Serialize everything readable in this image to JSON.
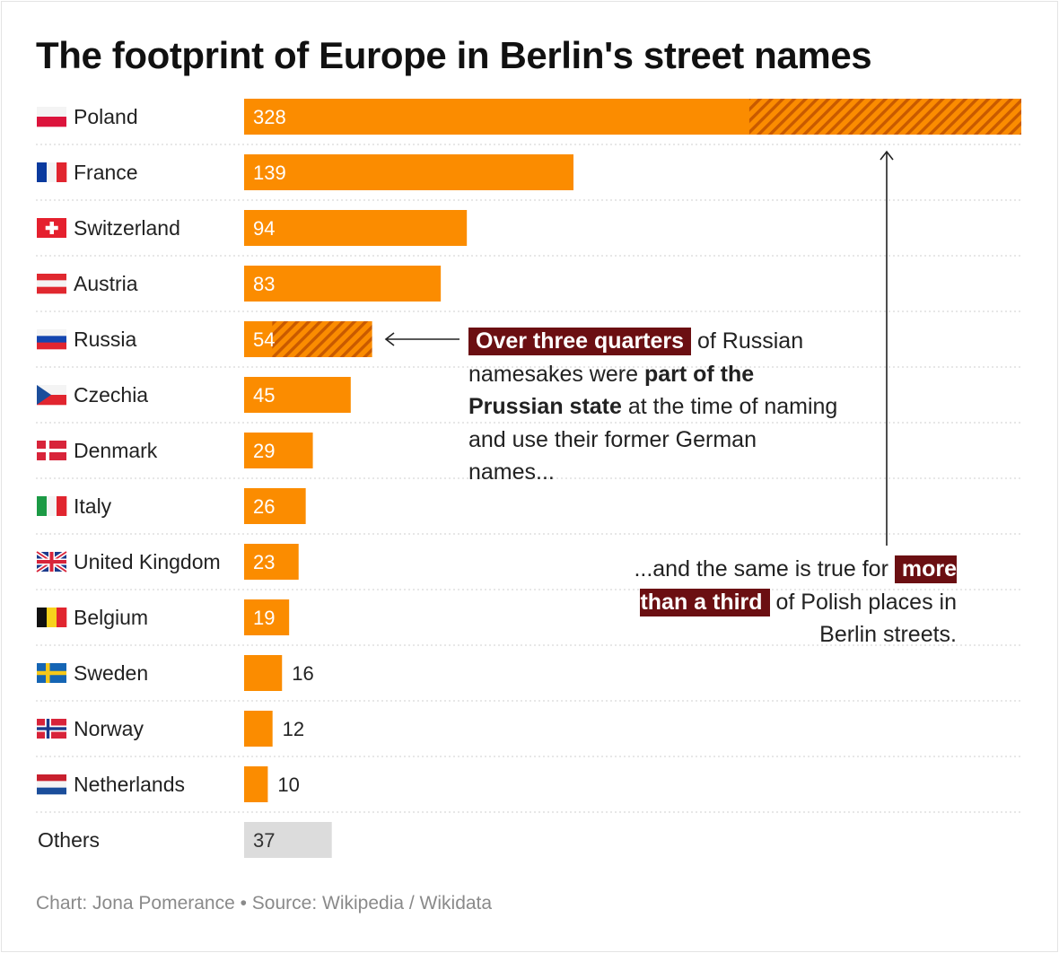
{
  "title": "The footprint of Europe in Berlin's street names",
  "footer": "Chart: Jona Pomerance • Source: Wikipedia / Wikidata",
  "colors": {
    "bar": "#fb8c00",
    "hatch": "#c85a00",
    "others": "#dcdcdc",
    "highlight": "#6b0f12"
  },
  "chart_data": {
    "type": "bar",
    "orientation": "horizontal",
    "title": "The footprint of Europe in Berlin's street names",
    "categories": [
      "Poland",
      "France",
      "Switzerland",
      "Austria",
      "Russia",
      "Czechia",
      "Denmark",
      "Italy",
      "United Kingdom",
      "Belgium",
      "Sweden",
      "Norway",
      "Netherlands",
      "Others"
    ],
    "values": [
      328,
      139,
      94,
      83,
      54,
      45,
      29,
      26,
      23,
      19,
      16,
      12,
      10,
      37
    ],
    "hatched_share_of_bar": [
      0.35,
      0,
      0,
      0,
      0.78,
      0,
      0,
      0,
      0,
      0,
      0,
      0,
      0,
      0
    ],
    "hatched_meaning": "part of the Prussian state at the time of naming and use their former German names",
    "flags": [
      "flag-poland-icon",
      "flag-france-icon",
      "flag-switzerland-icon",
      "flag-austria-icon",
      "flag-russia-icon",
      "flag-czechia-icon",
      "flag-denmark-icon",
      "flag-italy-icon",
      "flag-united-kingdom-icon",
      "flag-belgium-icon",
      "flag-sweden-icon",
      "flag-norway-icon",
      "flag-netherlands-icon",
      ""
    ],
    "xlim": [
      0,
      328
    ],
    "grid": "dotted row separators",
    "legend": "none"
  },
  "annotations": {
    "russia": {
      "highlight": "Over three quarters",
      "text1": " of Russian namesakes were ",
      "bold": "part of the Prussian state",
      "text2": " at the time of naming and use their former German names..."
    },
    "poland": {
      "text1": "...and the same is true for ",
      "highlight": "more than a third",
      "text2": " of Polish places in Berlin streets."
    }
  }
}
